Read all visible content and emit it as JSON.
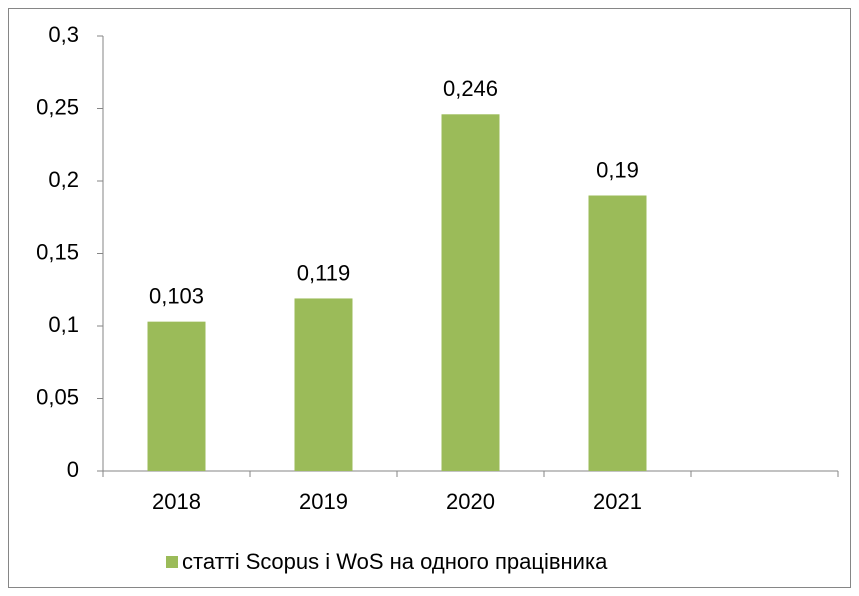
{
  "chart_data": {
    "type": "bar",
    "categories": [
      "2018",
      "2019",
      "2020",
      "2021",
      null
    ],
    "series": [
      {
        "name": "статті Scopus і WoS на одного працівника",
        "color": "#9bbb59",
        "values": [
          0.103,
          0.119,
          0.246,
          0.19,
          null
        ],
        "value_labels": [
          "0,103",
          "0,119",
          "0,246",
          "0,19",
          null
        ]
      }
    ],
    "ylim": [
      0,
      0.3
    ],
    "yticks": [
      0,
      {
        "value": 0.05,
        "label": "0,05"
      },
      {
        "value": 0.1,
        "label": "0,1"
      },
      {
        "value": 0.15,
        "label": "0,15"
      },
      {
        "value": 0.2,
        "label": "0,2"
      },
      {
        "value": 0.25,
        "label": "0,25"
      },
      {
        "value": 0.3,
        "label": "0,3"
      }
    ],
    "grid": false,
    "legend": "bottom"
  }
}
